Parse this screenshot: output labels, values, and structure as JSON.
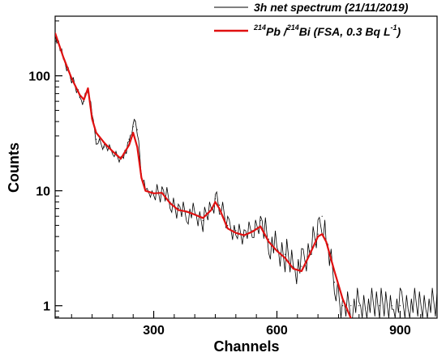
{
  "chart_data": {
    "type": "line",
    "title": "",
    "xlabel": "Channels",
    "ylabel": "Counts",
    "xlim": [
      60,
      990
    ],
    "ylim": [
      0.78,
      330
    ],
    "y_scale": "log",
    "grid": false,
    "legend_position": "top-right",
    "x_ticks": [
      {
        "value": 300,
        "label": "300"
      },
      {
        "value": 600,
        "label": "600"
      },
      {
        "value": 900,
        "label": "900"
      }
    ],
    "y_ticks": [
      {
        "value": 1,
        "label": "1"
      },
      {
        "value": 10,
        "label": "10"
      },
      {
        "value": 100,
        "label": "100"
      }
    ],
    "legend": [
      {
        "series": "measured",
        "text": "3h net spectrum (21/11/2019)"
      },
      {
        "series": "fit",
        "sup1": "214",
        "part1": "Pb /",
        "sup2": "214",
        "part2": "Bi (FSA, 0.3 Bq L",
        "sup3": "-1",
        "part3": ")"
      }
    ],
    "series": [
      {
        "id": "measured",
        "color": "#000000",
        "x": [
          60,
          80,
          100,
          120,
          130,
          140,
          150,
          160,
          180,
          200,
          220,
          230,
          240,
          250,
          255,
          260,
          270,
          280,
          300,
          320,
          340,
          360,
          380,
          400,
          420,
          440,
          450,
          460,
          480,
          500,
          520,
          540,
          560,
          580,
          600,
          620,
          640,
          660,
          680,
          700,
          710,
          720,
          740,
          760,
          780,
          800,
          850,
          880,
          900,
          990
        ],
        "values": [
          235,
          140,
          95,
          65,
          60,
          78,
          45,
          28,
          24,
          22,
          19,
          21,
          28,
          36,
          40,
          34,
          14,
          10,
          9.5,
          9.5,
          8,
          7,
          6.5,
          6.2,
          5.5,
          7,
          8.5,
          7.5,
          5,
          4.5,
          4,
          4.5,
          5.5,
          3.8,
          3,
          2.8,
          2.2,
          2.2,
          3,
          4.2,
          6,
          3.5,
          1.6,
          1,
          1,
          1,
          1,
          1,
          1,
          1
        ]
      },
      {
        "id": "fit",
        "color": "#e01010",
        "x": [
          60,
          80,
          100,
          120,
          130,
          140,
          150,
          160,
          180,
          200,
          220,
          240,
          250,
          260,
          270,
          280,
          300,
          320,
          340,
          360,
          380,
          400,
          420,
          440,
          450,
          460,
          480,
          500,
          520,
          540,
          560,
          580,
          600,
          620,
          640,
          660,
          680,
          700,
          710,
          720,
          740,
          760,
          770,
          780
        ],
        "values": [
          235,
          145,
          95,
          68,
          62,
          78,
          42,
          32,
          26,
          22,
          19,
          25,
          32,
          24,
          13,
          10,
          9.5,
          9.6,
          7.8,
          6.8,
          6.6,
          6.2,
          5.8,
          6.8,
          8,
          7,
          4.7,
          4.3,
          4.1,
          4.4,
          4.9,
          3.6,
          3,
          2.6,
          2.1,
          2,
          2.8,
          4,
          4.2,
          3.6,
          2,
          1.15,
          0.95,
          0.78
        ]
      }
    ]
  }
}
